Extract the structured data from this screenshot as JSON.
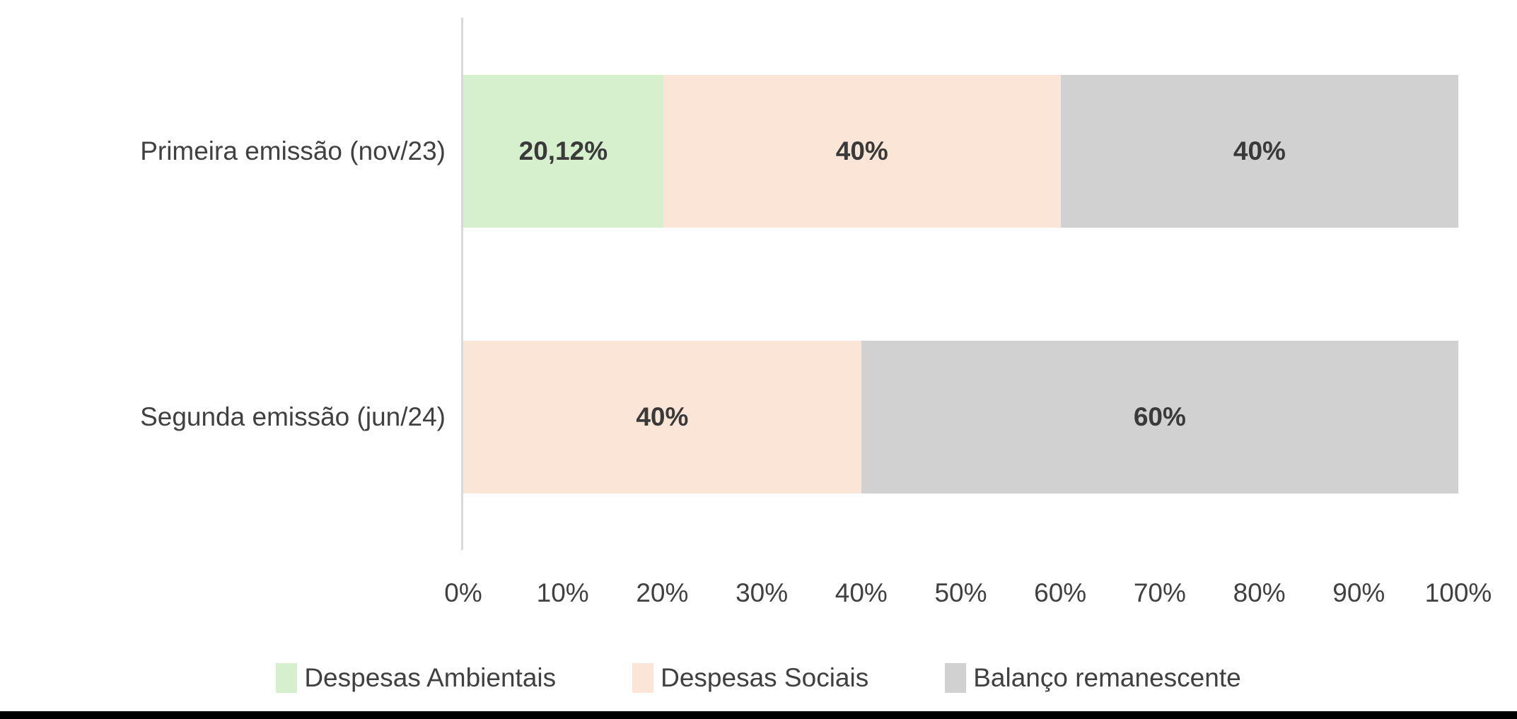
{
  "chart_data": {
    "type": "bar",
    "orientation": "horizontal",
    "stacked": true,
    "percent_stacked": true,
    "title": "",
    "xlabel": "",
    "ylabel": "",
    "categories": [
      "Primeira emissão (nov/23)",
      "Segunda emissão (jun/24)"
    ],
    "series": [
      {
        "name": "Despesas Ambientais",
        "color": "#D6EFCD",
        "values": [
          20.12,
          0
        ],
        "labels": [
          "20,12%",
          ""
        ]
      },
      {
        "name": "Despesas Sociais",
        "color": "#FBE5D6",
        "values": [
          40,
          40
        ],
        "labels": [
          "40%",
          "40%"
        ]
      },
      {
        "name": "Balanço remanescente",
        "color": "#D1D1D1",
        "values": [
          40,
          60
        ],
        "labels": [
          "40%",
          "60%"
        ]
      }
    ],
    "x_ticks": [
      "0%",
      "10%",
      "20%",
      "30%",
      "40%",
      "50%",
      "60%",
      "70%",
      "80%",
      "90%",
      "100%"
    ],
    "xlim": [
      0,
      100
    ],
    "grid": false,
    "legend_position": "bottom",
    "axis_line_color": "#D9D9D9",
    "label_color": "#404040",
    "data_label_color": "#3A3A3A"
  },
  "footer": {
    "strip_color": "#000000"
  }
}
